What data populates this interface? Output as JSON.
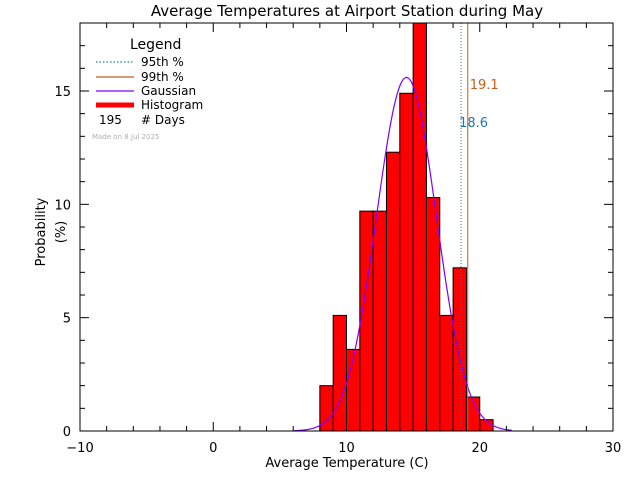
{
  "chart_data": {
    "type": "bar",
    "title": "Average Temperatures at Airport Station during May",
    "xlabel": "Average Temperature (C)",
    "ylabel": "Probability",
    "ylabel_unit": "(%)",
    "xlim": [
      -10,
      30
    ],
    "ylim": [
      0,
      18
    ],
    "xticks": [
      "−10",
      "0",
      "10",
      "20",
      "30"
    ],
    "xtick_values": [
      -10,
      0,
      10,
      20,
      30
    ],
    "yticks": [
      "0",
      "5",
      "10",
      "15"
    ],
    "ytick_values": [
      0,
      5,
      10,
      15
    ],
    "histogram": {
      "bin_width": 1,
      "bin_starts": [
        8,
        9,
        10,
        11,
        12,
        13,
        14,
        15,
        16,
        17,
        18,
        19,
        20
      ],
      "values": [
        2.0,
        5.1,
        3.6,
        9.7,
        9.7,
        12.3,
        14.9,
        18.0,
        10.3,
        5.1,
        7.2,
        1.5,
        0.5
      ],
      "color": "#ff0000"
    },
    "gaussian": {
      "mean": 14.5,
      "peak": 15.6,
      "sigma": 2.25,
      "color": "#7f00ff"
    },
    "percentile95": {
      "value": 18.6,
      "label": "18.6",
      "color": "#1f77b4"
    },
    "percentile99": {
      "value": 19.1,
      "label": "19.1",
      "color": "#c0601a"
    },
    "legend": {
      "title": "Legend",
      "position": "top-left",
      "entries": [
        {
          "label": "95th %",
          "style": "dotted",
          "color": "#1f77b4"
        },
        {
          "label": "99th %",
          "style": "solid",
          "color": "#c0601a"
        },
        {
          "label": "Gaussian",
          "style": "solid",
          "color": "#7f00ff"
        },
        {
          "label": "Histogram",
          "style": "thick",
          "color": "#ff0000"
        }
      ],
      "days_count": "195",
      "days_label": "# Days"
    },
    "footnote": "Made on 8 Jul 2025"
  }
}
